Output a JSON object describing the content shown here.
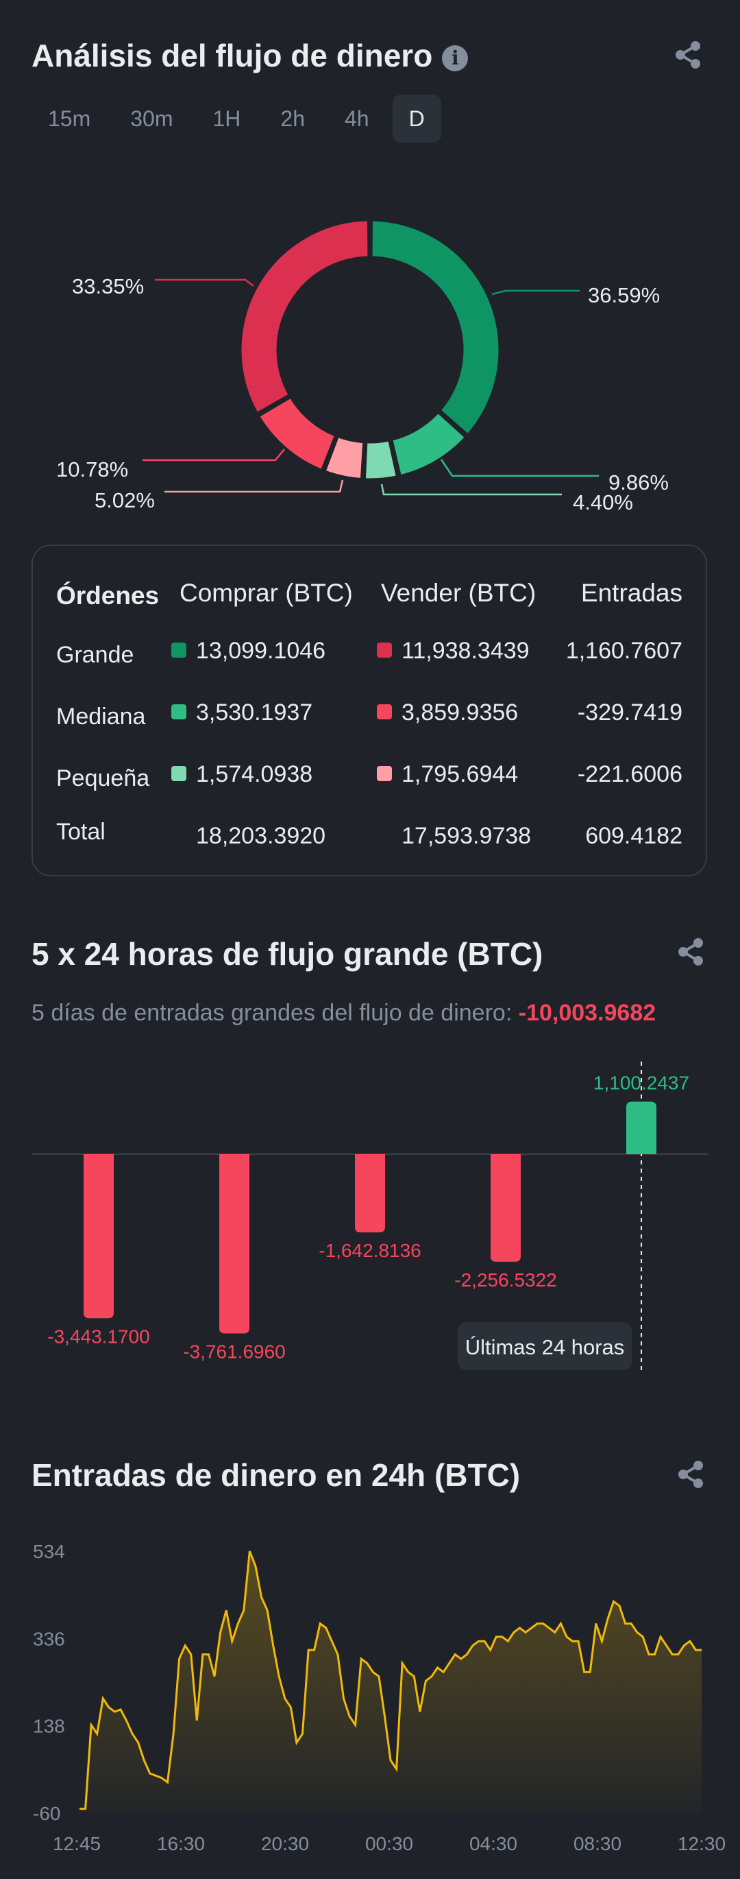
{
  "flow": {
    "title": "Análisis del flujo de dinero",
    "tabs": [
      {
        "label": "15m",
        "active": false
      },
      {
        "label": "30m",
        "active": false
      },
      {
        "label": "1H",
        "active": false
      },
      {
        "label": "2h",
        "active": false
      },
      {
        "label": "4h",
        "active": false
      },
      {
        "label": "D",
        "active": true
      }
    ],
    "donut": {
      "labels": [
        "36.59%",
        "9.86%",
        "4.40%",
        "5.02%",
        "10.78%",
        "33.35%"
      ]
    },
    "table": {
      "headers": [
        "Órdenes",
        "Comprar (BTC)",
        "Vender (BTC)",
        "Entradas"
      ],
      "rows": [
        {
          "label": "Grande",
          "buy": "13,099.1046",
          "sell": "11,938.3439",
          "inflow": "1,160.7607"
        },
        {
          "label": "Mediana",
          "buy": "3,530.1937",
          "sell": "3,859.9356",
          "inflow": "-329.7419"
        },
        {
          "label": "Pequeña",
          "buy": "1,574.0938",
          "sell": "1,795.6944",
          "inflow": "-221.6006"
        },
        {
          "label": "Total",
          "buy": "18,203.3920",
          "sell": "17,593.9738",
          "inflow": "609.4182"
        }
      ]
    }
  },
  "large_flow": {
    "title": "5 x 24 horas de flujo grande (BTC)",
    "subtitle_label": "5 días de entradas grandes del flujo de dinero:",
    "subtitle_value": "-10,003.9682",
    "tooltip": "Últimas 24 horas"
  },
  "inflow24": {
    "title": "Entradas de dinero en 24h (BTC)"
  },
  "colors": {
    "green_dark": "#0e9563",
    "green_mid": "#2ebd85",
    "green_light": "#7fd9b1",
    "red_dark": "#dc3050",
    "red_mid": "#f6465d",
    "red_light": "#ff9ea5",
    "line": "#f0b90b"
  },
  "chart_data": [
    {
      "type": "pie",
      "categories": [
        "Grande compra",
        "Mediana compra",
        "Pequeña compra",
        "Pequeña venta",
        "Mediana venta",
        "Grande venta"
      ],
      "values": [
        36.59,
        9.86,
        4.4,
        5.02,
        10.78,
        33.35
      ]
    },
    {
      "type": "bar",
      "categories": [
        "1",
        "2",
        "3",
        "4",
        "5"
      ],
      "values": [
        -3443.17,
        -3761.696,
        -1642.8136,
        -2256.5322,
        1100.2437
      ],
      "value_labels": [
        "-3,443.1700",
        "-3,761.6960",
        "-1,642.8136",
        "-2,256.5322",
        "1,100.2437"
      ]
    },
    {
      "type": "area",
      "x_ticks": [
        "12:45",
        "16:30",
        "20:30",
        "00:30",
        "04:30",
        "08:30",
        "12:30"
      ],
      "y_ticks": [
        "534",
        "336",
        "138",
        "-60"
      ],
      "ylim": [
        -60,
        534
      ],
      "values": [
        -50,
        -50,
        140,
        120,
        200,
        180,
        170,
        175,
        150,
        120,
        100,
        60,
        30,
        25,
        20,
        10,
        120,
        290,
        320,
        300,
        150,
        300,
        300,
        250,
        350,
        400,
        330,
        370,
        400,
        534,
        500,
        430,
        400,
        320,
        250,
        200,
        180,
        100,
        120,
        310,
        310,
        370,
        360,
        330,
        300,
        200,
        160,
        140,
        290,
        280,
        260,
        250,
        160,
        60,
        40,
        280,
        260,
        250,
        170,
        240,
        250,
        270,
        260,
        280,
        300,
        290,
        300,
        320,
        330,
        330,
        310,
        340,
        340,
        330,
        350,
        360,
        350,
        360,
        370,
        370,
        360,
        350,
        370,
        340,
        330,
        330,
        260,
        260,
        370,
        330,
        380,
        420,
        410,
        370,
        370,
        350,
        340,
        300,
        300,
        340,
        320,
        300,
        300,
        320,
        330,
        310,
        310
      ]
    }
  ]
}
